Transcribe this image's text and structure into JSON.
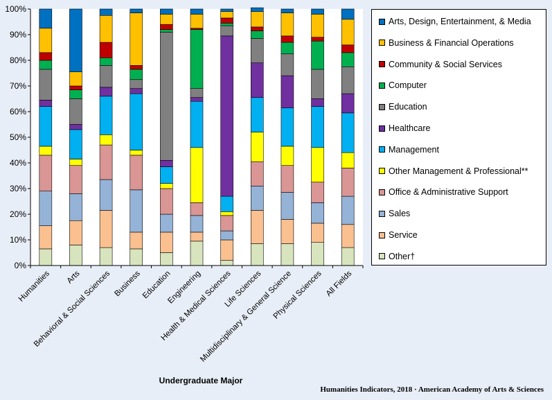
{
  "chart_data": {
    "type": "bar",
    "stacked": true,
    "title": "",
    "xlabel": "Undergraduate Major",
    "ylabel": "",
    "ylim": [
      0,
      100
    ],
    "yticks": [
      "0%",
      "10%",
      "20%",
      "30%",
      "40%",
      "50%",
      "60%",
      "70%",
      "80%",
      "90%",
      "100%"
    ],
    "grid": false,
    "legend_position": "right",
    "categories": [
      "Humanities",
      "Arts",
      "Behavioral & Social Sciences",
      "Business",
      "Education",
      "Engineering",
      "Health & Medical Sciences",
      "Life Sciences",
      "Multidisciplinary & General Science",
      "Physical Sciences",
      "All Fields"
    ],
    "series": [
      {
        "name": "Other†",
        "color": "#d7e4bd",
        "values": [
          6.5,
          8,
          7,
          6.5,
          5,
          9.5,
          2,
          8.5,
          8.5,
          9,
          7
        ]
      },
      {
        "name": "Service",
        "color": "#fac090",
        "values": [
          9,
          9.5,
          14.5,
          6.5,
          8,
          3.5,
          8,
          13,
          9.5,
          7.5,
          9
        ]
      },
      {
        "name": "Sales",
        "color": "#95b3d7",
        "values": [
          13.5,
          10.5,
          12,
          16.5,
          7,
          6.5,
          3.5,
          9.5,
          10.5,
          8,
          11
        ]
      },
      {
        "name": "Office & Administrative Support",
        "color": "#d99694",
        "values": [
          14,
          11,
          13.5,
          13.5,
          10,
          5,
          6,
          9.5,
          10.5,
          8,
          11
        ]
      },
      {
        "name": "Other Management & Professional**",
        "color": "#ffff00",
        "values": [
          3.5,
          2.5,
          4,
          2,
          2,
          21.5,
          1.5,
          11.5,
          7.5,
          13.5,
          6
        ]
      },
      {
        "name": "Management",
        "color": "#00b0f0",
        "values": [
          15.5,
          11.5,
          15,
          22,
          6.5,
          18,
          6,
          13.5,
          15,
          16,
          15.5
        ]
      },
      {
        "name": "Healthcare",
        "color": "#7030a0",
        "values": [
          2.5,
          2,
          3.5,
          2,
          2.5,
          1.5,
          62.5,
          13.5,
          12.5,
          3,
          7.5
        ]
      },
      {
        "name": "Education",
        "color": "#808080",
        "values": [
          12,
          10,
          8.5,
          3.5,
          50,
          3.5,
          4,
          9.5,
          8.5,
          11.5,
          10.5
        ]
      },
      {
        "name": "Computer",
        "color": "#00b050",
        "values": [
          3.5,
          3.5,
          3,
          4,
          1,
          23,
          1,
          3,
          4.5,
          11,
          5.5
        ]
      },
      {
        "name": "Community & Social Services",
        "color": "#c00000",
        "values": [
          3,
          1.5,
          6,
          1.5,
          2,
          0.5,
          2,
          1.5,
          2.5,
          1.5,
          3
        ]
      },
      {
        "name": "Business & Financial Operations",
        "color": "#ffc000",
        "values": [
          9.5,
          5.5,
          10.5,
          20.5,
          4,
          5.5,
          2.5,
          6,
          9,
          9,
          10
        ]
      },
      {
        "name": "Arts, Design, Entertainment, & Media",
        "color": "#0070c0",
        "values": [
          7.5,
          24.5,
          2.5,
          1.5,
          2,
          2,
          1,
          1.5,
          1.5,
          2,
          4
        ]
      }
    ]
  },
  "source_text": "Humanities Indicators, 2018 · American Academy of Arts & Sciences"
}
